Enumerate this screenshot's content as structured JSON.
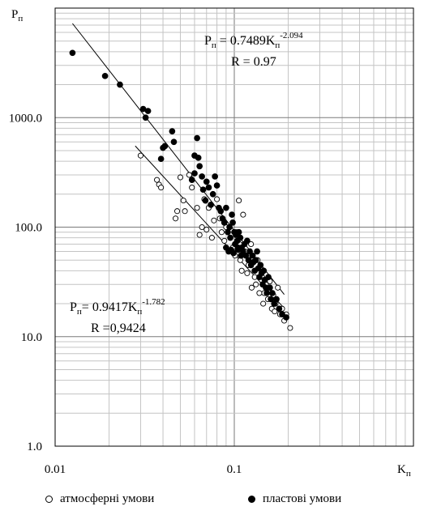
{
  "chart_data": {
    "type": "scatter",
    "x_scale": "log",
    "y_scale": "log",
    "xlim": [
      0.01,
      1
    ],
    "ylim": [
      1,
      10000
    ],
    "grid": true,
    "legend_position": "bottom",
    "x_ticks": [
      "0.01",
      "0.1"
    ],
    "y_ticks": [
      "1.0",
      "10.0",
      "100.0",
      "1000.0"
    ],
    "xlabel": {
      "main": "K",
      "sub": "п"
    },
    "ylabel": {
      "main": "P",
      "sub": "п"
    },
    "annotations": [
      {
        "eq_prefix": "P",
        "eq_sub": "п",
        "eq_mid": " = 0.7489K",
        "eq_sub2": "п",
        "eq_exp": "-2.094",
        "r_text": "R  = 0.97"
      },
      {
        "eq_prefix": "P",
        "eq_sub": "п",
        "eq_mid": "= 0.9417K",
        "eq_sub2": "п",
        "eq_exp": "-1.782",
        "r_text": "R  =0,9424"
      }
    ],
    "series": [
      {
        "name": "атмосферні умови",
        "marker": "open-circle",
        "color": "#000000",
        "trend": {
          "a": 0.9417,
          "b": -1.782,
          "x_range": [
            0.028,
            0.19
          ]
        },
        "points": [
          [
            0.03,
            450
          ],
          [
            0.037,
            270
          ],
          [
            0.038,
            245
          ],
          [
            0.039,
            230
          ],
          [
            0.048,
            140
          ],
          [
            0.047,
            120
          ],
          [
            0.052,
            175
          ],
          [
            0.053,
            140
          ],
          [
            0.05,
            285
          ],
          [
            0.056,
            300
          ],
          [
            0.058,
            230
          ],
          [
            0.062,
            150
          ],
          [
            0.064,
            85
          ],
          [
            0.066,
            100
          ],
          [
            0.068,
            180
          ],
          [
            0.07,
            95
          ],
          [
            0.072,
            150
          ],
          [
            0.075,
            80
          ],
          [
            0.077,
            115
          ],
          [
            0.08,
            180
          ],
          [
            0.083,
            120
          ],
          [
            0.085,
            90
          ],
          [
            0.088,
            75
          ],
          [
            0.09,
            100
          ],
          [
            0.095,
            80
          ],
          [
            0.098,
            65
          ],
          [
            0.101,
            55
          ],
          [
            0.103,
            90
          ],
          [
            0.106,
            175
          ],
          [
            0.107,
            70
          ],
          [
            0.108,
            50
          ],
          [
            0.11,
            40
          ],
          [
            0.112,
            130
          ],
          [
            0.115,
            60
          ],
          [
            0.118,
            38
          ],
          [
            0.12,
            45
          ],
          [
            0.124,
            70
          ],
          [
            0.127,
            55
          ],
          [
            0.13,
            35
          ],
          [
            0.132,
            30
          ],
          [
            0.135,
            50
          ],
          [
            0.138,
            25
          ],
          [
            0.14,
            42
          ],
          [
            0.143,
            35
          ],
          [
            0.147,
            25
          ],
          [
            0.15,
            30
          ],
          [
            0.154,
            22
          ],
          [
            0.158,
            32
          ],
          [
            0.162,
            18
          ],
          [
            0.165,
            24
          ],
          [
            0.17,
            20
          ],
          [
            0.175,
            28
          ],
          [
            0.18,
            16
          ],
          [
            0.185,
            18
          ],
          [
            0.19,
            14
          ],
          [
            0.195,
            16
          ],
          [
            0.205,
            12
          ],
          [
            0.125,
            28
          ],
          [
            0.145,
            20
          ],
          [
            0.168,
            17
          ]
        ]
      },
      {
        "name": "пластові умови",
        "marker": "filled-circle",
        "color": "#000000",
        "trend": {
          "a": 0.7489,
          "b": -2.094,
          "x_range": [
            0.0125,
            0.19
          ]
        },
        "points": [
          [
            0.0125,
            3900
          ],
          [
            0.019,
            2400
          ],
          [
            0.023,
            2000
          ],
          [
            0.031,
            1200
          ],
          [
            0.033,
            1150
          ],
          [
            0.032,
            1000
          ],
          [
            0.04,
            530
          ],
          [
            0.041,
            550
          ],
          [
            0.039,
            420
          ],
          [
            0.045,
            750
          ],
          [
            0.046,
            600
          ],
          [
            0.058,
            270
          ],
          [
            0.06,
            450
          ],
          [
            0.06,
            310
          ],
          [
            0.062,
            650
          ],
          [
            0.063,
            430
          ],
          [
            0.064,
            360
          ],
          [
            0.066,
            290
          ],
          [
            0.067,
            220
          ],
          [
            0.069,
            175
          ],
          [
            0.07,
            260
          ],
          [
            0.072,
            230
          ],
          [
            0.074,
            160
          ],
          [
            0.076,
            200
          ],
          [
            0.078,
            290
          ],
          [
            0.08,
            240
          ],
          [
            0.082,
            150
          ],
          [
            0.084,
            140
          ],
          [
            0.086,
            120
          ],
          [
            0.088,
            110
          ],
          [
            0.09,
            150
          ],
          [
            0.092,
            90
          ],
          [
            0.094,
            100
          ],
          [
            0.095,
            80
          ],
          [
            0.097,
            130
          ],
          [
            0.098,
            110
          ],
          [
            0.1,
            90
          ],
          [
            0.101,
            70
          ],
          [
            0.102,
            85
          ],
          [
            0.104,
            75
          ],
          [
            0.105,
            65
          ],
          [
            0.106,
            90
          ],
          [
            0.108,
            80
          ],
          [
            0.11,
            65
          ],
          [
            0.112,
            60
          ],
          [
            0.114,
            70
          ],
          [
            0.116,
            55
          ],
          [
            0.118,
            75
          ],
          [
            0.12,
            50
          ],
          [
            0.122,
            60
          ],
          [
            0.124,
            45
          ],
          [
            0.126,
            55
          ],
          [
            0.128,
            48
          ],
          [
            0.13,
            40
          ],
          [
            0.132,
            50
          ],
          [
            0.134,
            60
          ],
          [
            0.136,
            42
          ],
          [
            0.138,
            35
          ],
          [
            0.14,
            45
          ],
          [
            0.142,
            38
          ],
          [
            0.144,
            30
          ],
          [
            0.146,
            40
          ],
          [
            0.148,
            33
          ],
          [
            0.15,
            28
          ],
          [
            0.152,
            25
          ],
          [
            0.155,
            35
          ],
          [
            0.158,
            28
          ],
          [
            0.16,
            22
          ],
          [
            0.163,
            25
          ],
          [
            0.167,
            20
          ],
          [
            0.172,
            22
          ],
          [
            0.178,
            18
          ],
          [
            0.185,
            16
          ],
          [
            0.195,
            15
          ],
          [
            0.09,
            65
          ],
          [
            0.093,
            60
          ],
          [
            0.096,
            62
          ],
          [
            0.099,
            58
          ],
          [
            0.105,
            62
          ],
          [
            0.109,
            55
          ]
        ]
      }
    ]
  }
}
